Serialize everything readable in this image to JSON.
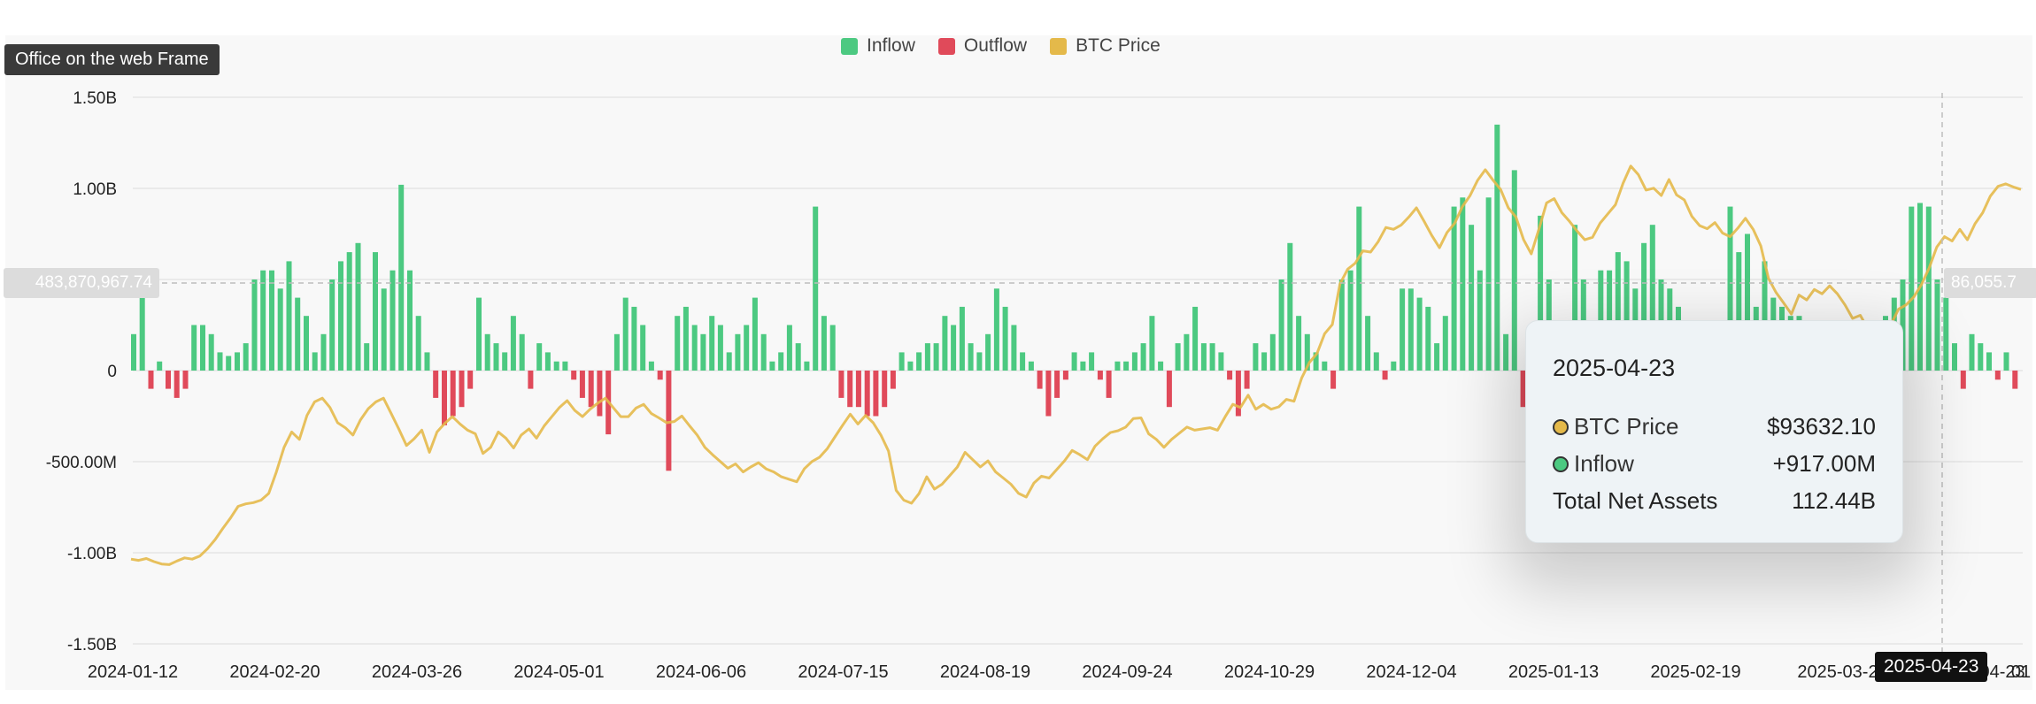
{
  "frame_label": "Office on the web Frame",
  "crosshair": {
    "left_value": "483,870,967.74",
    "right_value": "86,055.7",
    "date": "2025-04-23"
  },
  "legend": [
    {
      "label": "Inflow",
      "color": "#4cc981"
    },
    {
      "label": "Outflow",
      "color": "#e04a5a"
    },
    {
      "label": "BTC Price",
      "color": "#e4b94a"
    }
  ],
  "tooltip": {
    "date": "2025-04-23",
    "rows": [
      {
        "label": "BTC Price",
        "value": "$93632.10",
        "dot": "#e4b94a"
      },
      {
        "label": "Inflow",
        "value": "+917.00M",
        "dot": "#4cc981"
      },
      {
        "label": "Total Net Assets",
        "value": "112.44B"
      }
    ]
  },
  "chart_data": {
    "type": "bar",
    "y_ticks": [
      "1.50B",
      "1.00B",
      "500.00M",
      "0",
      "-500.00M",
      "-1.00B",
      "-1.50B"
    ],
    "y_tick_values": [
      1.5,
      1.0,
      0.5,
      0,
      -0.5,
      -1.0,
      -1.5
    ],
    "ylim": [
      -1.5,
      1.5
    ],
    "x_ticks": [
      "2024-01-12",
      "2024-02-20",
      "2024-03-26",
      "2024-05-01",
      "2024-06-06",
      "2024-07-15",
      "2024-08-19",
      "2024-09-24",
      "2024-10-29",
      "2024-12-04",
      "2025-01-13",
      "2025-02-19",
      "2025-03-2",
      "2025-04-23",
      "01"
    ],
    "series_names": [
      "Inflow",
      "Outflow",
      "BTC Price"
    ],
    "flows_billion": [
      0.2,
      0.4,
      -0.1,
      0.05,
      -0.1,
      -0.15,
      -0.1,
      0.25,
      0.25,
      0.2,
      0.1,
      0.08,
      0.1,
      0.15,
      0.5,
      0.55,
      0.55,
      0.45,
      0.6,
      0.4,
      0.3,
      0.1,
      0.2,
      0.5,
      0.6,
      0.65,
      0.7,
      0.15,
      0.65,
      0.45,
      0.55,
      1.02,
      0.55,
      0.3,
      0.1,
      -0.15,
      -0.3,
      -0.25,
      -0.2,
      -0.1,
      0.4,
      0.2,
      0.15,
      0.1,
      0.3,
      0.2,
      -0.1,
      0.15,
      0.1,
      0.05,
      0.05,
      -0.05,
      -0.15,
      -0.2,
      -0.25,
      -0.35,
      0.2,
      0.4,
      0.35,
      0.25,
      0.05,
      -0.05,
      -0.55,
      0.3,
      0.35,
      0.25,
      0.2,
      0.3,
      0.25,
      0.1,
      0.2,
      0.25,
      0.4,
      0.2,
      0.05,
      0.1,
      0.25,
      0.15,
      0.05,
      0.9,
      0.3,
      0.25,
      -0.15,
      -0.2,
      -0.2,
      -0.25,
      -0.25,
      -0.2,
      -0.1,
      0.1,
      0.05,
      0.1,
      0.15,
      0.15,
      0.3,
      0.25,
      0.35,
      0.15,
      0.1,
      0.2,
      0.45,
      0.35,
      0.25,
      0.1,
      0.05,
      -0.1,
      -0.25,
      -0.15,
      -0.05,
      0.1,
      0.05,
      0.1,
      -0.05,
      -0.15,
      0.05,
      0.05,
      0.1,
      0.15,
      0.3,
      0.05,
      -0.2,
      0.15,
      0.2,
      0.35,
      0.15,
      0.15,
      0.1,
      -0.05,
      -0.25,
      -0.1,
      0.15,
      0.1,
      0.2,
      0.5,
      0.7,
      0.3,
      0.2,
      0.1,
      0.05,
      -0.1,
      0.5,
      0.55,
      0.9,
      0.3,
      0.1,
      -0.05,
      0.05,
      0.45,
      0.45,
      0.4,
      0.35,
      0.15,
      0.3,
      0.9,
      0.95,
      0.8,
      0.55,
      0.95,
      1.35,
      0.2,
      1.1,
      -0.2,
      -0.05,
      0.85,
      0.5,
      -0.4,
      -0.4,
      0.8,
      0.5,
      0.25,
      0.55,
      0.55,
      0.65,
      0.6,
      0.45,
      0.7,
      0.8,
      0.5,
      0.45,
      0.35,
      -0.65,
      -0.35,
      -0.35,
      -0.2,
      -0.1,
      0.9,
      0.65,
      0.75,
      0.35,
      0.6,
      0.4,
      0.35,
      0.3,
      0.3,
      0.2,
      0.15,
      0.1,
      -0.5,
      -0.1,
      -0.2,
      -0.1,
      0.05,
      0.2,
      0.3,
      0.4,
      0.5,
      0.9,
      0.92,
      0.9,
      0.5,
      0.4,
      0.15,
      -0.1,
      0.2,
      0.15,
      0.1,
      -0.05,
      0.1,
      -0.1
    ],
    "btc_price": [
      42.8,
      42.6,
      42.9,
      42.4,
      42.0,
      41.9,
      42.5,
      43.0,
      42.8,
      43.3,
      44.5,
      46.0,
      47.8,
      49.5,
      51.4,
      51.8,
      52.0,
      52.4,
      53.5,
      57.0,
      61.0,
      63.5,
      62.3,
      66.2,
      68.4,
      69.0,
      67.5,
      65.0,
      64.2,
      63.0,
      65.5,
      67.3,
      68.4,
      69.0,
      66.5,
      64.0,
      61.3,
      62.4,
      63.8,
      60.2,
      63.5,
      64.9,
      66.0,
      64.8,
      63.8,
      63.2,
      60.0,
      61.0,
      63.5,
      62.5,
      60.9,
      63.0,
      64.0,
      62.5,
      64.5,
      66.0,
      67.5,
      68.6,
      67.0,
      66.0,
      67.2,
      68.2,
      69.0,
      67.5,
      66.0,
      66.0,
      67.4,
      68.0,
      66.5,
      65.8,
      65.0,
      65.2,
      66.1,
      64.5,
      63.0,
      61.0,
      59.8,
      58.7,
      57.6,
      58.3,
      57.0,
      57.8,
      58.5,
      57.5,
      57.0,
      56.2,
      55.8,
      55.4,
      57.5,
      58.7,
      59.4,
      60.8,
      62.7,
      64.6,
      66.4,
      64.8,
      66.2,
      65.0,
      63.0,
      60.4,
      54.0,
      52.4,
      51.9,
      53.5,
      56.2,
      54.2,
      55.0,
      56.4,
      57.8,
      60.2,
      59.0,
      57.8,
      58.8,
      57.0,
      56.0,
      55.0,
      53.5,
      52.9,
      55.2,
      56.3,
      56.0,
      57.4,
      58.8,
      60.5,
      59.8,
      59.0,
      61.2,
      62.4,
      63.4,
      63.7,
      64.3,
      65.7,
      65.8,
      63.2,
      62.3,
      61.0,
      62.3,
      63.3,
      64.3,
      63.8,
      64.0,
      64.2,
      63.8,
      66.0,
      68.0,
      67.5,
      69.5,
      67.2,
      68.0,
      67.2,
      67.6,
      68.8,
      68.5,
      72.3,
      74.8,
      76.3,
      79.5,
      81.0,
      87.6,
      90.0,
      91.0,
      93.0,
      92.8,
      94.5,
      96.8,
      96.5,
      97.2,
      98.5,
      100.0,
      97.8,
      95.5,
      93.5,
      96.0,
      97.5,
      100.2,
      102.0,
      104.5,
      106.2,
      104.5,
      103.0,
      100.0,
      98.5,
      94.8,
      92.5,
      96.5,
      100.8,
      101.5,
      99.2,
      97.8,
      96.2,
      94.8,
      95.2,
      97.5,
      99.0,
      100.5,
      104.0,
      106.8,
      105.4,
      102.9,
      103.2,
      102.0,
      104.6,
      102.1,
      101.3,
      98.6,
      97.1,
      96.6,
      97.6,
      95.9,
      95.3,
      96.7,
      98.3,
      96.5,
      93.8,
      88.5,
      86.2,
      84.5,
      82.7,
      85.8,
      85.0,
      86.7,
      86.0,
      87.3,
      86.0,
      84.2,
      82.0,
      82.5,
      80.3,
      79.2,
      80.5,
      81.0,
      83.5,
      84.2,
      85.5,
      87.5,
      90.2,
      93.6,
      95.3,
      94.6,
      96.5,
      94.8,
      97.4,
      99.2,
      101.9,
      103.5,
      103.9,
      103.4,
      103.0
    ],
    "price_axis_range": [
      29,
      118
    ],
    "grid": true,
    "legend_position": "top-center"
  }
}
